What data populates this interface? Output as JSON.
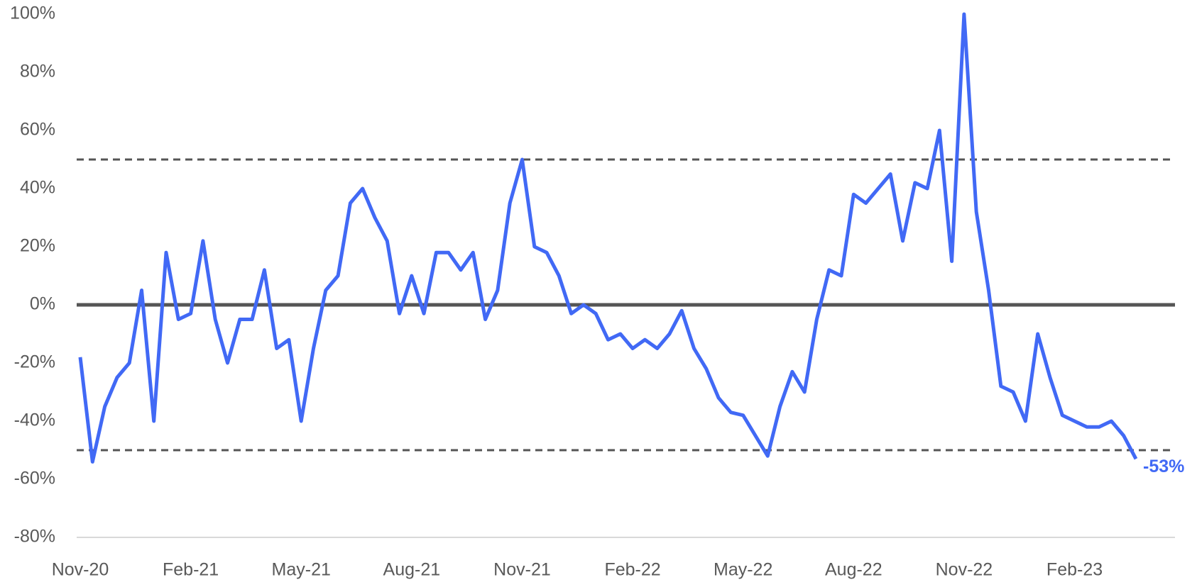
{
  "chart_data": {
    "type": "line",
    "categories": [
      "Nov-20",
      null,
      null,
      null,
      null,
      null,
      null,
      null,
      null,
      "Feb-21",
      null,
      null,
      null,
      null,
      null,
      null,
      null,
      null,
      "May-21",
      null,
      null,
      null,
      null,
      null,
      null,
      null,
      null,
      "Aug-21",
      null,
      null,
      null,
      null,
      null,
      null,
      null,
      null,
      "Nov-21",
      null,
      null,
      null,
      null,
      null,
      null,
      null,
      null,
      "Feb-22",
      null,
      null,
      null,
      null,
      null,
      null,
      null,
      null,
      "May-22",
      null,
      null,
      null,
      null,
      null,
      null,
      null,
      null,
      "Aug-22",
      null,
      null,
      null,
      null,
      null,
      null,
      null,
      null,
      "Nov-22",
      null,
      null,
      null,
      null,
      null,
      null,
      null,
      null,
      "Feb-23",
      null,
      null,
      null,
      null,
      null
    ],
    "series": [
      {
        "color": "#4169f5",
        "values": [
          -18,
          -54,
          -35,
          -25,
          -20,
          5,
          -40,
          18,
          -5,
          -3,
          22,
          -5,
          -20,
          -5,
          -5,
          12,
          -15,
          -12,
          -40,
          -15,
          5,
          10,
          35,
          40,
          30,
          22,
          -3,
          10,
          -3,
          18,
          18,
          12,
          18,
          -5,
          5,
          35,
          50,
          20,
          18,
          10,
          -3,
          0,
          -3,
          -12,
          -10,
          -15,
          -12,
          -15,
          -10,
          -2,
          -15,
          -22,
          -32,
          -37,
          -38,
          -45,
          -52,
          -35,
          -23,
          -30,
          -5,
          12,
          10,
          38,
          35,
          40,
          45,
          22,
          42,
          40,
          60,
          15,
          100,
          32,
          5,
          -28,
          -30,
          -40,
          -10,
          -25,
          -38,
          -40,
          -42,
          -42,
          -40,
          -45,
          -53
        ],
        "value_labels": [
          null,
          null,
          null,
          null,
          null,
          null,
          null,
          null,
          null,
          null,
          null,
          null,
          null,
          null,
          null,
          null,
          null,
          null,
          null,
          null,
          null,
          null,
          null,
          null,
          null,
          null,
          null,
          null,
          null,
          null,
          null,
          null,
          null,
          null,
          null,
          null,
          null,
          null,
          null,
          null,
          null,
          null,
          null,
          null,
          null,
          null,
          null,
          null,
          null,
          null,
          null,
          null,
          null,
          null,
          null,
          null,
          null,
          null,
          null,
          null,
          null,
          null,
          null,
          null,
          null,
          null,
          null,
          null,
          null,
          null,
          null,
          null,
          null,
          null,
          null,
          null,
          null,
          null,
          null,
          null,
          null,
          null,
          null,
          null,
          null,
          null,
          "-53%"
        ]
      }
    ],
    "ylim": [
      -80,
      100
    ],
    "yticks": [
      {
        "value": -80,
        "label": "-80%"
      },
      {
        "value": -60,
        "label": "-60%"
      },
      {
        "value": -40,
        "label": "-40%"
      },
      {
        "value": -20,
        "label": "-20%"
      },
      {
        "value": 0,
        "label": "0%"
      },
      {
        "value": 20,
        "label": "20%"
      },
      {
        "value": 40,
        "label": "40%"
      },
      {
        "value": 60,
        "label": "60%"
      },
      {
        "value": 80,
        "label": "80%"
      },
      {
        "value": 100,
        "label": "100%"
      }
    ],
    "reference_lines": [
      {
        "value": 0,
        "style": "solid",
        "color": "#555555"
      },
      {
        "value": 50,
        "style": "dashed",
        "color": "#555555"
      },
      {
        "value": -50,
        "style": "dashed",
        "color": "#555555"
      }
    ],
    "grid": false
  }
}
